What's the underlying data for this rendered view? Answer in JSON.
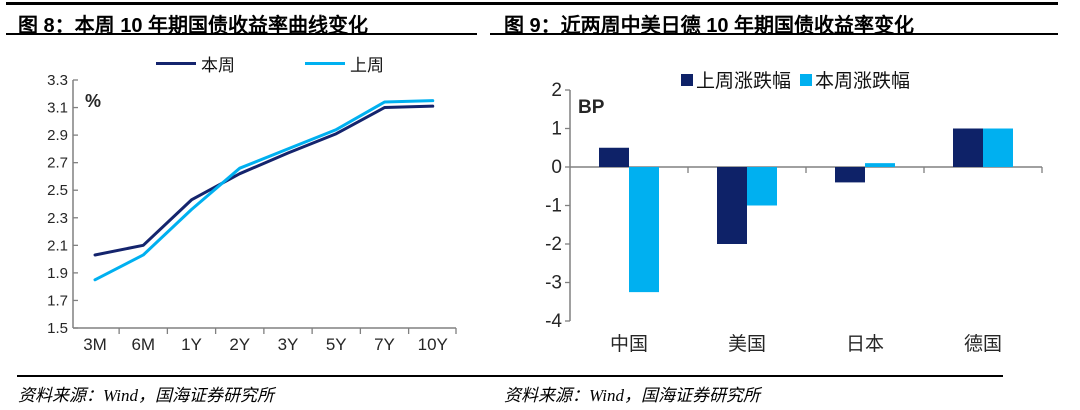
{
  "colors": {
    "navy": "#0e2268",
    "navy_line": "#14246d",
    "cyan": "#00b0f0",
    "axis_gray": "#808080",
    "tick_text": "#262626",
    "rule_black": "#000000"
  },
  "chart_data": [
    {
      "type": "line",
      "title": "图 8：本周 10 年期国债收益率曲线变化",
      "unit_label": "%",
      "categories": [
        "3M",
        "6M",
        "1Y",
        "2Y",
        "3Y",
        "5Y",
        "7Y",
        "10Y"
      ],
      "series": [
        {
          "name": "本周",
          "color": "#14246d",
          "values": [
            2.03,
            2.1,
            2.43,
            2.62,
            2.77,
            2.91,
            3.1,
            3.11
          ]
        },
        {
          "name": "上周",
          "color": "#00b0f0",
          "values": [
            1.85,
            2.03,
            2.36,
            2.66,
            2.8,
            2.94,
            3.14,
            3.15
          ]
        }
      ],
      "ylim": [
        1.5,
        3.3
      ],
      "ytick_step": 0.2,
      "ytick_decimals": 1,
      "grid": false,
      "legend_position": "top",
      "source": "资料来源：Wind，国海证券研究所"
    },
    {
      "type": "bar",
      "title": "图 9：近两周中美日德 10 年期国债收益率变化",
      "unit_label": "BP",
      "categories": [
        "中国",
        "美国",
        "日本",
        "德国"
      ],
      "series": [
        {
          "name": "上周涨跌幅",
          "color": "#0e2268",
          "values": [
            0.5,
            -2.0,
            -0.4,
            1.0
          ]
        },
        {
          "name": "本周涨跌幅",
          "color": "#00b0f0",
          "values": [
            -3.25,
            -1.0,
            0.1,
            1.0
          ]
        }
      ],
      "ylim": [
        -4,
        2
      ],
      "ytick_step": 1,
      "ytick_decimals": 0,
      "grid": false,
      "legend_position": "top",
      "source": "资料来源：Wind，国海证券研究所"
    }
  ]
}
